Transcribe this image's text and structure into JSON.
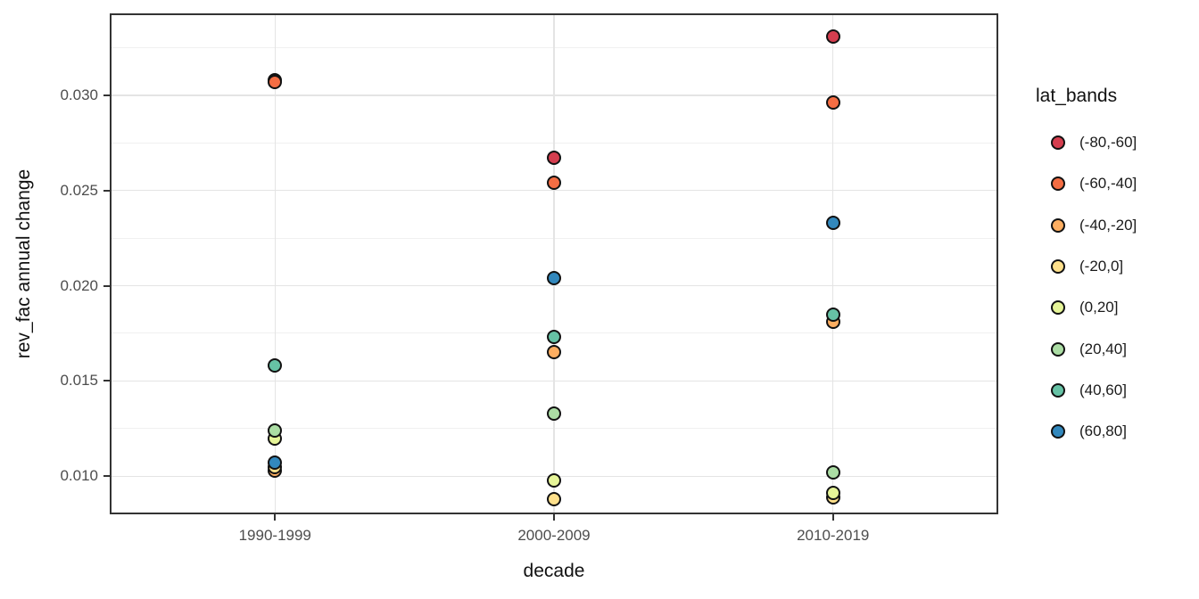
{
  "chart_data": {
    "type": "scatter",
    "title": "",
    "xlabel": "decade",
    "ylabel": "rev_fac annual change",
    "legend_title": "lat_bands",
    "legend_position": "right",
    "grid": true,
    "categories": [
      "1990-1999",
      "2000-2009",
      "2010-2019"
    ],
    "y_tick_labels": [
      "0.010",
      "0.015",
      "0.020",
      "0.025",
      "0.030"
    ],
    "y_tick_values": [
      0.01,
      0.015,
      0.02,
      0.025,
      0.03
    ],
    "y_minor_tick_values": [
      0.0125,
      0.0175,
      0.0225,
      0.0275,
      0.0325
    ],
    "ylim": [
      0.008,
      0.0343
    ],
    "point_outline_color": "#111111",
    "series": [
      {
        "name": "(-80,-60]",
        "color": "#D53E4F",
        "values": [
          0.0308,
          0.0267,
          0.0331
        ]
      },
      {
        "name": "(-60,-40]",
        "color": "#F46D43",
        "values": [
          0.0307,
          0.0254,
          0.0296
        ]
      },
      {
        "name": "(-40,-20]",
        "color": "#FDAE61",
        "values": [
          0.0103,
          0.0165,
          0.0181
        ]
      },
      {
        "name": "(-20,0]",
        "color": "#FEE08B",
        "values": [
          0.0105,
          0.0088,
          0.0089
        ]
      },
      {
        "name": "(0,20]",
        "color": "#E6F598",
        "values": [
          0.012,
          0.0098,
          0.0091
        ]
      },
      {
        "name": "(20,40]",
        "color": "#ABDDA4",
        "values": [
          0.0124,
          0.0133,
          0.0102
        ]
      },
      {
        "name": "(40,60]",
        "color": "#66C2A5",
        "values": [
          0.0158,
          0.0173,
          0.0185
        ]
      },
      {
        "name": "(60,80]",
        "color": "#3288BD",
        "values": [
          0.0107,
          0.0204,
          0.0233
        ]
      }
    ]
  }
}
